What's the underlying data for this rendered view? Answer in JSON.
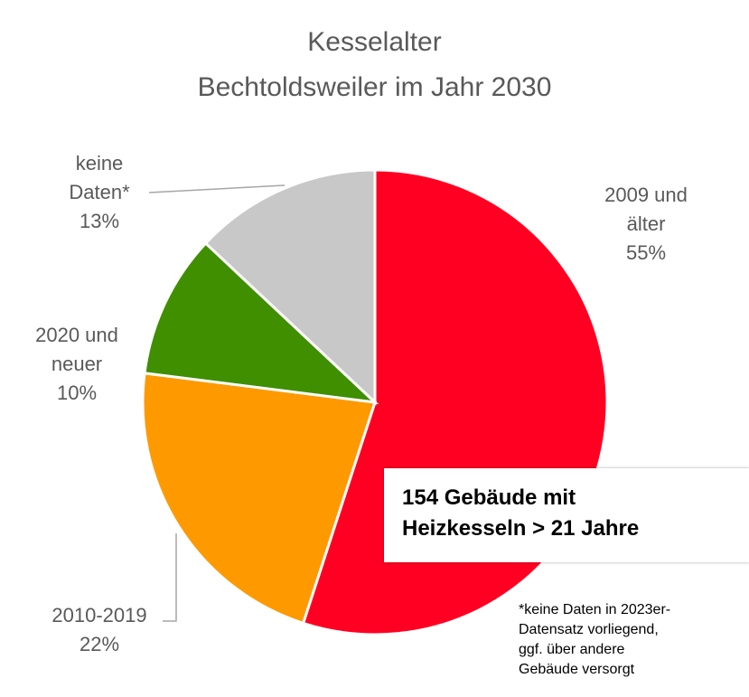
{
  "chart_data": {
    "type": "pie",
    "title": [
      "Kesselalter",
      "Bechtoldsweiler im Jahr 2030"
    ],
    "categories": [
      "2009 und älter",
      "2010-2019",
      "2020 und neuer",
      "keine Daten*"
    ],
    "values": [
      55,
      22,
      10,
      13
    ],
    "value_labels": [
      "55%",
      "22%",
      "10%",
      "13%"
    ],
    "colors": [
      "#ff0022",
      "#ff9900",
      "#3f8f00",
      "#c8c8c8"
    ],
    "annotation": [
      "154 Gebäude mit",
      "Heizkesseln > 21 Jahre"
    ],
    "footnote": [
      "*keine Daten in 2023er-",
      "Datensatz vorliegend,",
      "ggf. über andere",
      "Gebäude versorgt"
    ]
  }
}
